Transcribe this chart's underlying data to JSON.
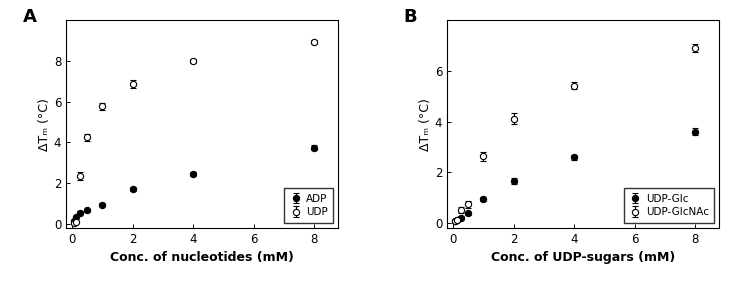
{
  "panel_A": {
    "title": "A",
    "xlabel": "Conc. of nucleotides (mM)",
    "ylabel": "ΔTₘ (°C)",
    "xlim": [
      -0.2,
      8.8
    ],
    "ylim": [
      -0.2,
      10.0
    ],
    "yticks": [
      0,
      2,
      4,
      6,
      8
    ],
    "xticks": [
      0,
      2,
      4,
      6,
      8
    ],
    "series": [
      {
        "label": "ADP",
        "filled": true,
        "x": [
          0.0625,
          0.125,
          0.25,
          0.5,
          1.0,
          2.0,
          4.0,
          8.0
        ],
        "y": [
          0.15,
          0.35,
          0.55,
          0.65,
          0.93,
          1.72,
          2.43,
          3.73
        ],
        "yerr": [
          0.05,
          0.05,
          0.06,
          0.07,
          0.08,
          0.1,
          0.1,
          0.12
        ]
      },
      {
        "label": "UDP",
        "filled": false,
        "x": [
          0.0625,
          0.125,
          0.25,
          0.5,
          1.0,
          2.0,
          4.0,
          8.0
        ],
        "y": [
          0.05,
          0.1,
          2.35,
          4.25,
          5.78,
          6.88,
          8.02,
          8.93
        ],
        "yerr": [
          0.04,
          0.04,
          0.18,
          0.18,
          0.18,
          0.18,
          0.1,
          0.1
        ]
      }
    ]
  },
  "panel_B": {
    "title": "B",
    "xlabel": "Conc. of UDP-sugars (mM)",
    "ylabel": "ΔTₘ (°C)",
    "xlim": [
      -0.2,
      8.8
    ],
    "ylim": [
      -0.2,
      8.0
    ],
    "yticks": [
      0,
      2,
      4,
      6
    ],
    "xticks": [
      0,
      2,
      4,
      6,
      8
    ],
    "series": [
      {
        "label": "UDP-Glc",
        "filled": true,
        "x": [
          0.0625,
          0.125,
          0.25,
          0.5,
          1.0,
          2.0,
          4.0,
          8.0
        ],
        "y": [
          0.05,
          0.1,
          0.2,
          0.38,
          0.93,
          1.65,
          2.58,
          3.6
        ],
        "yerr": [
          0.04,
          0.04,
          0.05,
          0.06,
          0.08,
          0.1,
          0.1,
          0.15
        ]
      },
      {
        "label": "UDP-GlcNAc",
        "filled": false,
        "x": [
          0.0625,
          0.125,
          0.25,
          0.5,
          1.0,
          2.0,
          4.0,
          8.0
        ],
        "y": [
          0.05,
          0.1,
          0.5,
          0.72,
          2.62,
          4.12,
          5.42,
          6.92
        ],
        "yerr": [
          0.05,
          0.05,
          0.12,
          0.12,
          0.18,
          0.22,
          0.15,
          0.15
        ]
      }
    ]
  },
  "legend_fontsize": 7.5,
  "axis_fontsize": 8.5,
  "label_fontsize": 9,
  "marker_size": 4.5,
  "linewidth": 1.0,
  "capsize": 2,
  "elinewidth": 0.8
}
